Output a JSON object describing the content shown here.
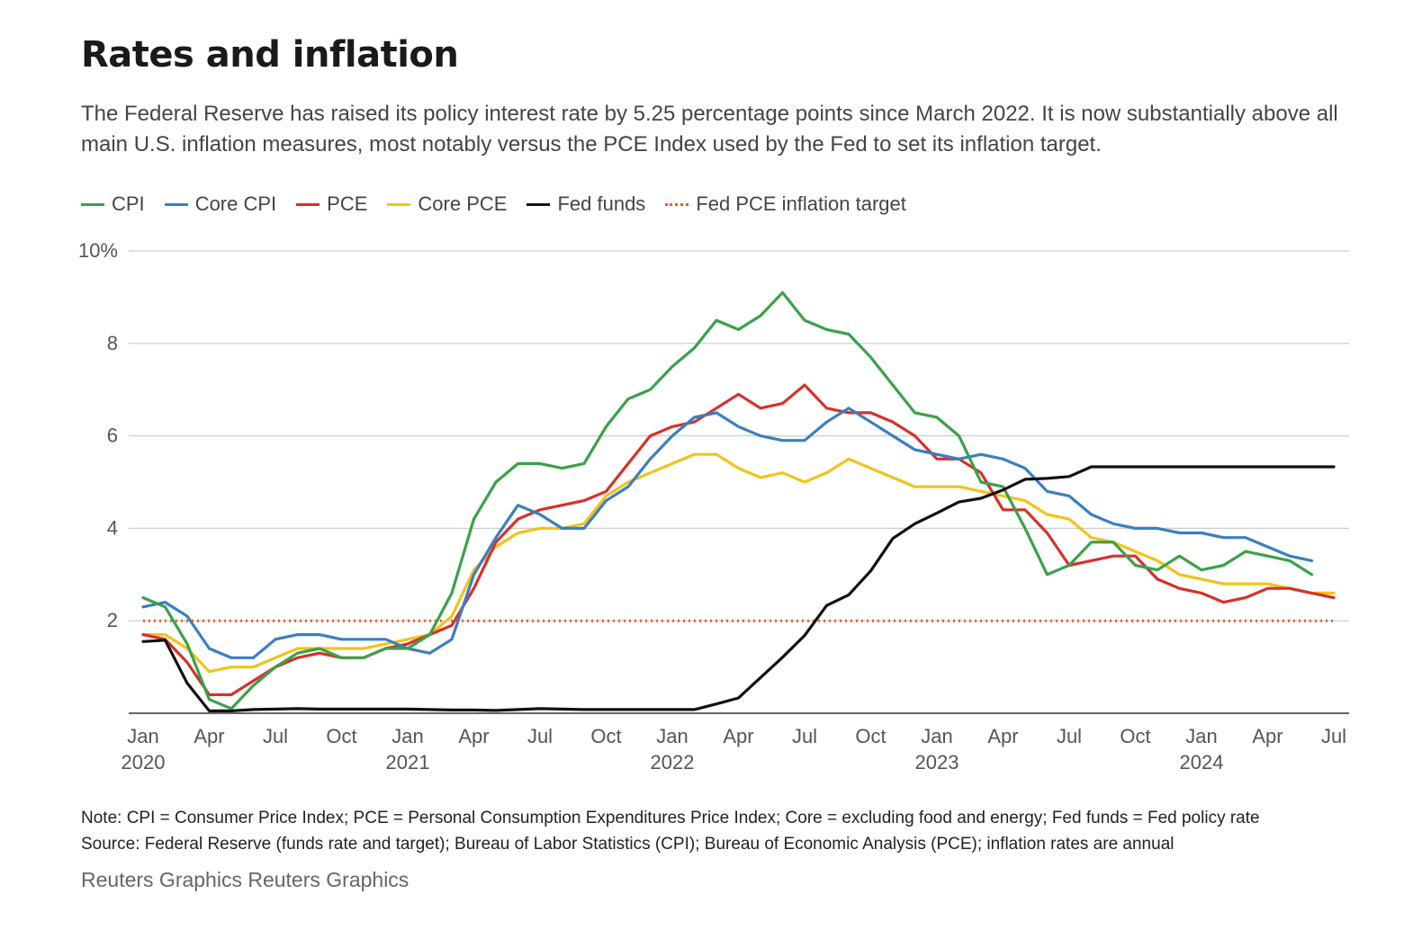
{
  "title": "Rates and inflation",
  "subtitle": "The Federal Reserve has raised its policy interest rate by 5.25 percentage points since March 2022. It is now substantially above all main U.S. inflation measures, most notably versus the PCE Index used by the Fed to set its inflation target.",
  "note": "Note: CPI = Consumer Price Index; PCE = Personal Consumption Expenditures Price Index; Core = excluding food and energy; Fed funds = Fed policy rate",
  "source": "Source: Federal Reserve (funds rate and target); Bureau of Labor Statistics (CPI); Bureau of Economic Analysis (PCE); inflation rates are annual",
  "credit": "Reuters Graphics Reuters Graphics",
  "chart_data": {
    "type": "line",
    "title": "Rates and inflation",
    "ylim": [
      0,
      10
    ],
    "y_ticks": [
      {
        "value": 10,
        "label": "10%"
      },
      {
        "value": 8,
        "label": "8"
      },
      {
        "value": 6,
        "label": "6"
      },
      {
        "value": 4,
        "label": "4"
      },
      {
        "value": 2,
        "label": "2"
      }
    ],
    "x_start": "2020-01",
    "x_ticks": [
      {
        "index": 0,
        "label": "Jan",
        "year": "2020"
      },
      {
        "index": 3,
        "label": "Apr"
      },
      {
        "index": 6,
        "label": "Jul"
      },
      {
        "index": 9,
        "label": "Oct"
      },
      {
        "index": 12,
        "label": "Jan",
        "year": "2021"
      },
      {
        "index": 15,
        "label": "Apr"
      },
      {
        "index": 18,
        "label": "Jul"
      },
      {
        "index": 21,
        "label": "Oct"
      },
      {
        "index": 24,
        "label": "Jan",
        "year": "2022"
      },
      {
        "index": 27,
        "label": "Apr"
      },
      {
        "index": 30,
        "label": "Jul"
      },
      {
        "index": 33,
        "label": "Oct"
      },
      {
        "index": 36,
        "label": "Jan",
        "year": "2023"
      },
      {
        "index": 39,
        "label": "Apr"
      },
      {
        "index": 42,
        "label": "Jul"
      },
      {
        "index": 45,
        "label": "Oct"
      },
      {
        "index": 48,
        "label": "Jan",
        "year": "2024"
      },
      {
        "index": 51,
        "label": "Apr"
      },
      {
        "index": 54,
        "label": "Jul"
      }
    ],
    "legend_position": "top-left",
    "grid": true,
    "series": [
      {
        "name": "CPI",
        "color": "#3aa14a",
        "values": [
          2.5,
          2.3,
          1.5,
          0.3,
          0.1,
          0.6,
          1.0,
          1.3,
          1.4,
          1.2,
          1.2,
          1.4,
          1.4,
          1.7,
          2.6,
          4.2,
          5.0,
          5.4,
          5.4,
          5.3,
          5.4,
          6.2,
          6.8,
          7.0,
          7.5,
          7.9,
          8.5,
          8.3,
          8.6,
          9.1,
          8.5,
          8.3,
          8.2,
          7.7,
          7.1,
          6.5,
          6.4,
          6.0,
          5.0,
          4.9,
          4.0,
          3.0,
          3.2,
          3.7,
          3.7,
          3.2,
          3.1,
          3.4,
          3.1,
          3.2,
          3.5,
          3.4,
          3.3,
          3.0
        ]
      },
      {
        "name": "Core CPI",
        "color": "#3a7fc1",
        "values": [
          2.3,
          2.4,
          2.1,
          1.4,
          1.2,
          1.2,
          1.6,
          1.7,
          1.7,
          1.6,
          1.6,
          1.6,
          1.4,
          1.3,
          1.6,
          3.0,
          3.8,
          4.5,
          4.3,
          4.0,
          4.0,
          4.6,
          4.9,
          5.5,
          6.0,
          6.4,
          6.5,
          6.2,
          6.0,
          5.9,
          5.9,
          6.3,
          6.6,
          6.3,
          6.0,
          5.7,
          5.6,
          5.5,
          5.6,
          5.5,
          5.3,
          4.8,
          4.7,
          4.3,
          4.1,
          4.0,
          4.0,
          3.9,
          3.9,
          3.8,
          3.8,
          3.6,
          3.4,
          3.3
        ]
      },
      {
        "name": "PCE",
        "color": "#d6312b",
        "values": [
          1.7,
          1.6,
          1.1,
          0.4,
          0.4,
          0.7,
          1.0,
          1.2,
          1.3,
          1.2,
          1.2,
          1.4,
          1.5,
          1.7,
          1.9,
          2.7,
          3.7,
          4.2,
          4.4,
          4.5,
          4.6,
          4.8,
          5.4,
          6.0,
          6.2,
          6.3,
          6.6,
          6.9,
          6.6,
          6.7,
          7.1,
          6.6,
          6.5,
          6.5,
          6.3,
          6.0,
          5.5,
          5.5,
          5.2,
          4.4,
          4.4,
          3.9,
          3.2,
          3.3,
          3.4,
          3.4,
          2.9,
          2.7,
          2.6,
          2.4,
          2.5,
          2.7,
          2.7,
          2.6,
          2.5
        ]
      },
      {
        "name": "Core PCE",
        "color": "#f1c31b",
        "values": [
          1.7,
          1.7,
          1.4,
          0.9,
          1.0,
          1.0,
          1.2,
          1.4,
          1.4,
          1.4,
          1.4,
          1.5,
          1.6,
          1.7,
          2.1,
          3.1,
          3.6,
          3.9,
          4.0,
          4.0,
          4.1,
          4.7,
          5.0,
          5.2,
          5.4,
          5.6,
          5.6,
          5.3,
          5.1,
          5.2,
          5.0,
          5.2,
          5.5,
          5.3,
          5.1,
          4.9,
          4.9,
          4.9,
          4.8,
          4.7,
          4.6,
          4.3,
          4.2,
          3.8,
          3.7,
          3.5,
          3.3,
          3.0,
          2.9,
          2.8,
          2.8,
          2.8,
          2.7,
          2.6,
          2.6
        ]
      },
      {
        "name": "Fed funds",
        "color": "#111111",
        "values": [
          1.55,
          1.58,
          0.65,
          0.05,
          0.05,
          0.08,
          0.09,
          0.1,
          0.09,
          0.09,
          0.09,
          0.09,
          0.09,
          0.08,
          0.07,
          0.07,
          0.06,
          0.08,
          0.1,
          0.09,
          0.08,
          0.08,
          0.08,
          0.08,
          0.08,
          0.08,
          0.2,
          0.33,
          0.77,
          1.21,
          1.68,
          2.33,
          2.56,
          3.08,
          3.78,
          4.1,
          4.33,
          4.57,
          4.65,
          4.83,
          5.06,
          5.08,
          5.12,
          5.33,
          5.33,
          5.33,
          5.33,
          5.33,
          5.33,
          5.33,
          5.33,
          5.33,
          5.33,
          5.33,
          5.33
        ]
      },
      {
        "name": "Fed PCE inflation target",
        "color": "#e8601c",
        "dashed": true,
        "values": [
          2,
          2,
          2,
          2,
          2,
          2,
          2,
          2,
          2,
          2,
          2,
          2,
          2,
          2,
          2,
          2,
          2,
          2,
          2,
          2,
          2,
          2,
          2,
          2,
          2,
          2,
          2,
          2,
          2,
          2,
          2,
          2,
          2,
          2,
          2,
          2,
          2,
          2,
          2,
          2,
          2,
          2,
          2,
          2,
          2,
          2,
          2,
          2,
          2,
          2,
          2,
          2,
          2,
          2,
          2
        ]
      }
    ]
  }
}
